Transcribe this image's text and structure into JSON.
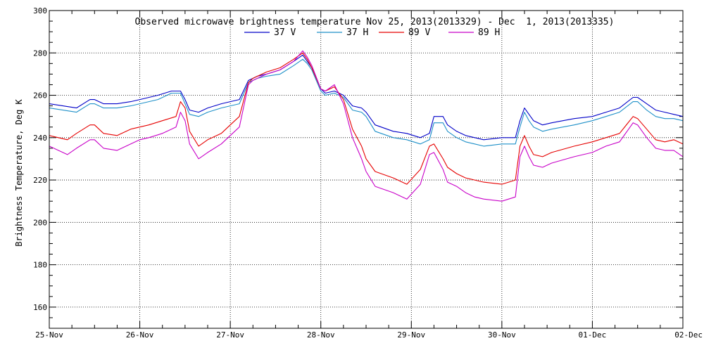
{
  "chart_data": {
    "type": "line",
    "title": "Observed microwave brightness temperature Nov 25, 2013(2013329) - Dec  1, 2013(2013335)",
    "xlabel": "",
    "ylabel": "Brightness Temperature, Deg K",
    "xlim": [
      0,
      7
    ],
    "ylim": [
      150,
      300
    ],
    "grid": true,
    "legend_position": "top-center",
    "x_tick_labels": [
      "25-Nov",
      "26-Nov",
      "27-Nov",
      "28-Nov",
      "29-Nov",
      "30-Nov",
      "01-Dec",
      "02-Dec"
    ],
    "y_ticks": [
      160,
      180,
      200,
      220,
      240,
      260,
      280,
      300
    ],
    "x_unit": "days since 25-Nov 00:00",
    "series": [
      {
        "name": "37 V",
        "color": "#0000c8",
        "x": [
          0,
          0.15,
          0.3,
          0.45,
          0.5,
          0.6,
          0.75,
          0.9,
          1.0,
          1.2,
          1.35,
          1.45,
          1.5,
          1.55,
          1.65,
          1.75,
          1.9,
          2.0,
          2.1,
          2.2,
          2.25,
          2.3,
          2.4,
          2.55,
          2.7,
          2.8,
          2.85,
          2.9,
          3.0,
          3.05,
          3.15,
          3.25,
          3.35,
          3.45,
          3.5,
          3.6,
          3.8,
          3.95,
          4.1,
          4.2,
          4.25,
          4.35,
          4.4,
          4.5,
          4.6,
          4.7,
          4.8,
          5.0,
          5.15,
          5.2,
          5.25,
          5.3,
          5.35,
          5.45,
          5.55,
          5.8,
          6.0,
          6.15,
          6.3,
          6.45,
          6.5,
          6.6,
          6.7,
          6.8,
          6.9,
          7.0
        ],
        "y": [
          256,
          255,
          254,
          258,
          258,
          256,
          256,
          257,
          258,
          260,
          262,
          262,
          258,
          253,
          252,
          254,
          256,
          257,
          258,
          267,
          268,
          269,
          270,
          272,
          276,
          279,
          276,
          273,
          263,
          261,
          262,
          260,
          255,
          254,
          252,
          246,
          243,
          242,
          240,
          242,
          250,
          250,
          246,
          243,
          241,
          240,
          239,
          240,
          240,
          248,
          254,
          251,
          248,
          246,
          247,
          249,
          250,
          252,
          254,
          259,
          259,
          256,
          253,
          252,
          251,
          250
        ]
      },
      {
        "name": "37 H",
        "color": "#1e90c8",
        "x": [
          0,
          0.15,
          0.3,
          0.45,
          0.5,
          0.6,
          0.75,
          0.9,
          1.0,
          1.2,
          1.35,
          1.45,
          1.5,
          1.55,
          1.65,
          1.75,
          1.9,
          2.0,
          2.1,
          2.2,
          2.25,
          2.3,
          2.4,
          2.55,
          2.7,
          2.8,
          2.85,
          2.9,
          3.0,
          3.05,
          3.15,
          3.25,
          3.35,
          3.45,
          3.5,
          3.6,
          3.8,
          3.95,
          4.1,
          4.2,
          4.25,
          4.35,
          4.4,
          4.5,
          4.6,
          4.7,
          4.8,
          5.0,
          5.15,
          5.2,
          5.25,
          5.3,
          5.35,
          5.45,
          5.55,
          5.8,
          6.0,
          6.15,
          6.3,
          6.45,
          6.5,
          6.6,
          6.7,
          6.8,
          6.9,
          7.0
        ],
        "y": [
          254,
          253,
          252,
          256,
          256,
          254,
          254,
          255,
          256,
          258,
          261,
          261,
          256,
          251,
          250,
          252,
          254,
          255,
          256,
          266,
          267,
          268,
          269,
          270,
          274,
          277,
          275,
          272,
          262,
          260,
          261,
          259,
          253,
          252,
          250,
          243,
          240,
          239,
          237,
          239,
          247,
          247,
          243,
          240,
          238,
          237,
          236,
          237,
          237,
          245,
          252,
          248,
          245,
          243,
          244,
          246,
          248,
          250,
          252,
          257,
          257,
          253,
          250,
          249,
          249,
          248
        ]
      },
      {
        "name": "89 V",
        "color": "#e60000",
        "x": [
          0,
          0.1,
          0.2,
          0.3,
          0.45,
          0.5,
          0.6,
          0.75,
          0.9,
          1.0,
          1.1,
          1.25,
          1.4,
          1.45,
          1.5,
          1.55,
          1.65,
          1.75,
          1.9,
          2.0,
          2.1,
          2.2,
          2.25,
          2.3,
          2.4,
          2.55,
          2.7,
          2.8,
          2.85,
          2.9,
          3.0,
          3.05,
          3.15,
          3.25,
          3.35,
          3.45,
          3.5,
          3.6,
          3.8,
          3.95,
          4.1,
          4.2,
          4.25,
          4.35,
          4.4,
          4.5,
          4.6,
          4.7,
          4.8,
          5.0,
          5.15,
          5.2,
          5.25,
          5.3,
          5.35,
          5.45,
          5.55,
          5.8,
          6.0,
          6.15,
          6.3,
          6.45,
          6.5,
          6.6,
          6.7,
          6.8,
          6.9,
          7.0
        ],
        "y": [
          241,
          240,
          239,
          242,
          246,
          246,
          242,
          241,
          244,
          245,
          246,
          248,
          250,
          257,
          254,
          243,
          236,
          239,
          242,
          246,
          250,
          266,
          268,
          269,
          271,
          273,
          277,
          280,
          277,
          273,
          263,
          262,
          264,
          258,
          244,
          236,
          230,
          224,
          221,
          218,
          225,
          236,
          237,
          230,
          226,
          223,
          221,
          220,
          219,
          218,
          220,
          236,
          241,
          236,
          232,
          231,
          233,
          236,
          238,
          240,
          242,
          250,
          249,
          244,
          239,
          238,
          239,
          237
        ]
      },
      {
        "name": "89 H",
        "color": "#c800c8",
        "x": [
          0,
          0.1,
          0.2,
          0.3,
          0.45,
          0.5,
          0.6,
          0.75,
          0.9,
          1.0,
          1.1,
          1.25,
          1.4,
          1.45,
          1.5,
          1.55,
          1.65,
          1.75,
          1.9,
          2.0,
          2.1,
          2.2,
          2.25,
          2.3,
          2.4,
          2.55,
          2.7,
          2.8,
          2.85,
          2.9,
          3.0,
          3.05,
          3.15,
          3.25,
          3.35,
          3.45,
          3.5,
          3.6,
          3.8,
          3.95,
          4.1,
          4.2,
          4.25,
          4.35,
          4.4,
          4.5,
          4.6,
          4.7,
          4.8,
          5.0,
          5.15,
          5.2,
          5.25,
          5.3,
          5.35,
          5.45,
          5.55,
          5.8,
          6.0,
          6.15,
          6.3,
          6.45,
          6.5,
          6.6,
          6.7,
          6.8,
          6.9,
          7.0
        ],
        "y": [
          236,
          234,
          232,
          235,
          239,
          239,
          235,
          234,
          237,
          239,
          240,
          242,
          245,
          252,
          248,
          237,
          230,
          233,
          237,
          241,
          245,
          265,
          267,
          268,
          270,
          272,
          276,
          281,
          278,
          274,
          263,
          262,
          265,
          256,
          240,
          230,
          224,
          217,
          214,
          211,
          218,
          232,
          233,
          225,
          219,
          217,
          214,
          212,
          211,
          210,
          212,
          231,
          236,
          231,
          227,
          226,
          228,
          231,
          233,
          236,
          238,
          247,
          246,
          240,
          235,
          234,
          234,
          231
        ]
      }
    ]
  }
}
